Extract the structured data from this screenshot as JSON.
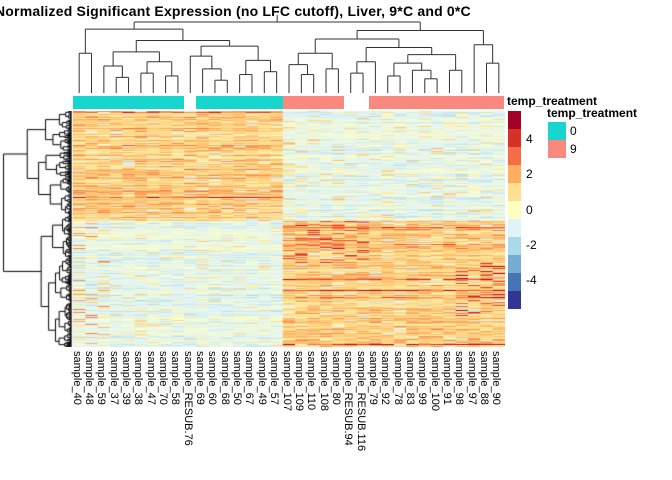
{
  "title": "Normalized Significant Expression (no LFC cutoff), Liver, 9*C and 0*C",
  "annotation": {
    "label": "temp_treatment",
    "colors": {
      "0": "#16D6CE",
      "9": "#F9897F",
      "na": "#FFFFFF"
    }
  },
  "legend": {
    "annotation_title": "temp_treatment",
    "entries": [
      {
        "label": "0",
        "color": "#16D6CE"
      },
      {
        "label": "9",
        "color": "#F9897F"
      }
    ],
    "scale_ticks": [
      {
        "label": "4",
        "value": 4
      },
      {
        "label": "2",
        "value": 2
      },
      {
        "label": "0",
        "value": 0
      },
      {
        "label": "-2",
        "value": -2
      },
      {
        "label": "-4",
        "value": -4
      }
    ]
  },
  "chart_data": {
    "type": "heatmap",
    "title": "Normalized Significant Expression (no LFC cutoff), Liver, 9*C and 0*C",
    "columns": [
      "sample_40",
      "sample_48",
      "sample_59",
      "sample_37",
      "sample_39",
      "sample_38",
      "sample_47",
      "sample_70",
      "sample_58",
      "sample_RESUB.76",
      "sample_69",
      "sample_60",
      "sample_68",
      "sample_50",
      "sample_67",
      "sample_49",
      "sample_57",
      "sample_107",
      "sample_109",
      "sample_110",
      "sample_108",
      "sample_80",
      "sample_RESUB.94",
      "sample_RESUB.116",
      "sample_79",
      "sample_92",
      "sample_78",
      "sample_83",
      "sample_99",
      "sample_100",
      "sample_91",
      "sample_98",
      "sample_97",
      "sample_88",
      "sample_90"
    ],
    "column_annotation": {
      "name": "temp_treatment",
      "values": [
        "0",
        "0",
        "0",
        "0",
        "0",
        "0",
        "0",
        "0",
        "0",
        null,
        "0",
        "0",
        "0",
        "0",
        "0",
        "0",
        "0",
        "9",
        "9",
        "9",
        "9",
        "9",
        null,
        null,
        "9",
        "9",
        "9",
        "9",
        "9",
        "9",
        "9",
        "9",
        "9",
        "9",
        "9"
      ]
    },
    "row_labels_shown": false,
    "approx_n_display_rows": 236,
    "value_range": [
      -5.5,
      5.5
    ],
    "colorscale_low_to_high": [
      "#313695",
      "#4575B4",
      "#74ADD1",
      "#ABD9E9",
      "#E0F3F8",
      "#FFFFBF",
      "#FEE090",
      "#FDAE61",
      "#F46D43",
      "#D73027",
      "#A50026"
    ],
    "column_clusters": [
      {
        "group": "0C samples (left dendrogram branch)",
        "n_columns": 17
      },
      {
        "group": "9C samples (right dendrogram branch)",
        "n_columns": 18
      }
    ],
    "pattern": "Two row blocks: top block is high (orange/red) in the 0C columns and low (pale blue) in the 9C columns; bottom block is the reverse. RESUB samples have blank (NA) annotation cells."
  }
}
